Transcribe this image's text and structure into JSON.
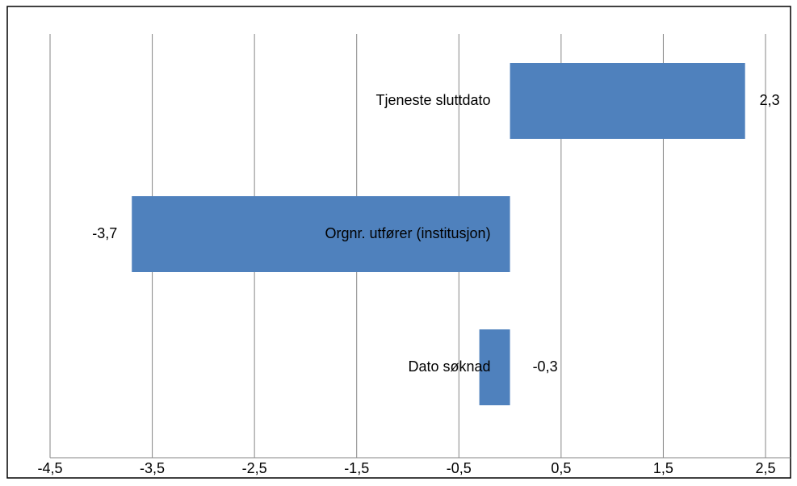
{
  "chart_data": {
    "type": "bar",
    "orientation": "horizontal",
    "categories": [
      "Tjeneste sluttdato",
      "Orgnr. utfører (institusjon)",
      "Dato søknad"
    ],
    "values": [
      2.3,
      -3.7,
      -0.3
    ],
    "value_labels": [
      "2,3",
      "-3,7",
      "-0,3"
    ],
    "color": "#4f81bd",
    "xlim": [
      -4.5,
      2.5
    ],
    "xticks": [
      {
        "value": -4.5,
        "label": "-4,5"
      },
      {
        "value": -3.5,
        "label": "-3,5"
      },
      {
        "value": -2.5,
        "label": "-2,5"
      },
      {
        "value": -1.5,
        "label": "-1,5"
      },
      {
        "value": -0.5,
        "label": "-0,5"
      },
      {
        "value": 0.5,
        "label": "0,5"
      },
      {
        "value": 1.5,
        "label": "1,5"
      },
      {
        "value": 2.5,
        "label": "2,5"
      }
    ],
    "grid": true
  }
}
